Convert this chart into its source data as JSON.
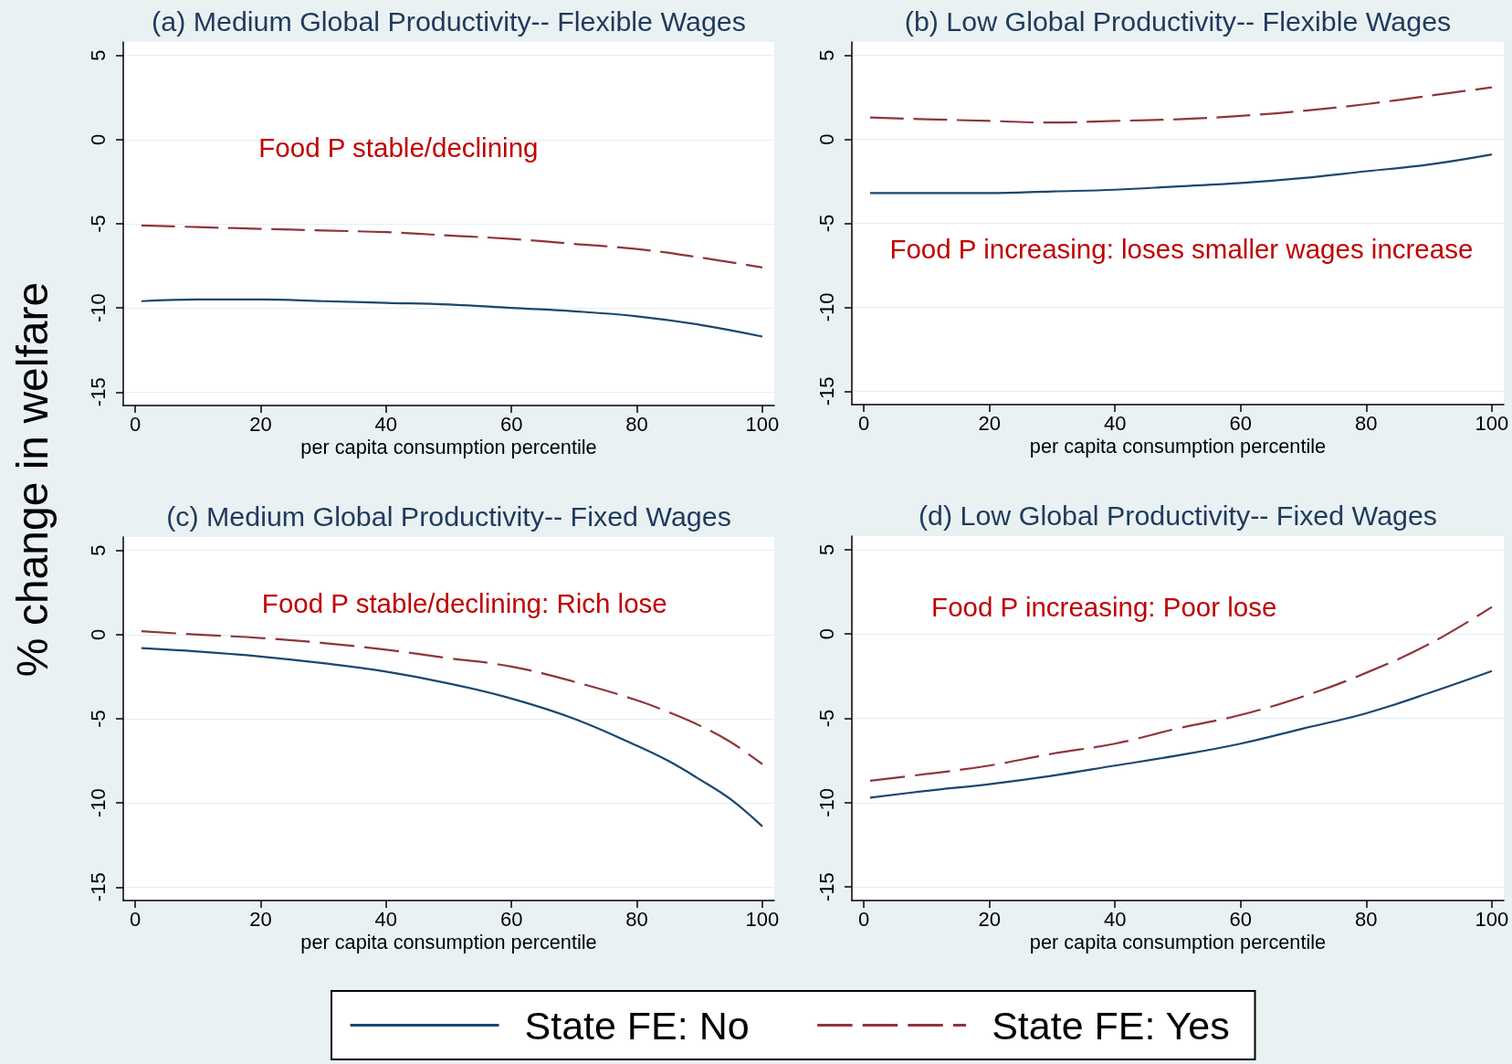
{
  "chart_data": [
    {
      "type": "line",
      "title": "(a) Medium Global Productivity-- Flexible Wages",
      "xlabel": "per capita consumption percentile",
      "ylabel": "% change in welfare",
      "annotations": [
        "Food P stable/declining"
      ],
      "x": [
        1,
        10,
        20,
        30,
        40,
        50,
        60,
        70,
        80,
        90,
        100
      ],
      "series": [
        {
          "color": "#1a476f",
          "line_style": "solid",
          "values": [
            -9.6,
            -9.5,
            -9.5,
            -9.6,
            -9.7,
            -9.8,
            -10.0,
            -10.2,
            -10.5,
            -11.0,
            -11.7
          ]
        },
        {
          "color": "#90353b",
          "line_style": "dashed",
          "values": [
            -5.1,
            -5.2,
            -5.3,
            -5.4,
            -5.5,
            -5.7,
            -5.9,
            -6.2,
            -6.5,
            -7.0,
            -7.6
          ]
        }
      ],
      "xlim": [
        -1.9,
        101.9
      ],
      "xticks": [
        0,
        20,
        40,
        60,
        80,
        100
      ],
      "ylim": [
        -15.8,
        5.8
      ],
      "yticks": [
        -15,
        -10,
        -5,
        0,
        5
      ],
      "grid": "y"
    },
    {
      "type": "line",
      "title": "(b) Low Global Productivity-- Flexible Wages",
      "xlabel": "per capita consumption percentile",
      "annotations": [
        "Food P increasing: loses smaller wages increase"
      ],
      "x": [
        1,
        10,
        20,
        30,
        40,
        50,
        60,
        70,
        80,
        90,
        100
      ],
      "series": [
        {
          "color": "#1a476f",
          "line_style": "solid",
          "values": [
            -3.2,
            -3.2,
            -3.2,
            -3.1,
            -3.0,
            -2.8,
            -2.6,
            -2.3,
            -1.9,
            -1.5,
            -0.9
          ]
        },
        {
          "color": "#90353b",
          "line_style": "dashed",
          "values": [
            1.3,
            1.2,
            1.1,
            1.0,
            1.1,
            1.2,
            1.4,
            1.7,
            2.1,
            2.6,
            3.1
          ]
        }
      ],
      "xlim": [
        -1.9,
        101.9
      ],
      "xticks": [
        0,
        20,
        40,
        60,
        80,
        100
      ],
      "ylim": [
        -15.8,
        5.8
      ],
      "yticks": [
        -15,
        -10,
        -5,
        0,
        5
      ],
      "grid": "y"
    },
    {
      "type": "line",
      "title": "(c) Medium Global Productivity-- Fixed Wages",
      "xlabel": "per capita consumption percentile",
      "annotations": [
        "Food P stable/declining: Rich lose"
      ],
      "x": [
        1,
        10,
        20,
        30,
        40,
        50,
        60,
        70,
        80,
        85,
        90,
        95,
        100
      ],
      "series": [
        {
          "color": "#1a476f",
          "line_style": "solid",
          "values": [
            -0.8,
            -1.0,
            -1.3,
            -1.7,
            -2.2,
            -2.9,
            -3.8,
            -5.0,
            -6.6,
            -7.5,
            -8.6,
            -9.8,
            -11.4
          ]
        },
        {
          "color": "#90353b",
          "line_style": "dashed",
          "values": [
            0.2,
            0.0,
            -0.2,
            -0.5,
            -0.9,
            -1.4,
            -1.9,
            -2.8,
            -3.9,
            -4.6,
            -5.4,
            -6.4,
            -7.7
          ]
        }
      ],
      "xlim": [
        -1.9,
        101.9
      ],
      "xticks": [
        0,
        20,
        40,
        60,
        80,
        100
      ],
      "ylim": [
        -15.8,
        5.8
      ],
      "yticks": [
        -15,
        -10,
        -5,
        0,
        5
      ],
      "grid": "y"
    },
    {
      "type": "line",
      "title": "(d) Low Global Productivity-- Fixed Wages",
      "xlabel": "per capita consumption percentile",
      "annotations": [
        "Food P increasing: Poor lose"
      ],
      "x": [
        1,
        10,
        20,
        30,
        40,
        50,
        60,
        70,
        80,
        90,
        100
      ],
      "series": [
        {
          "name": "State FE: No",
          "color": "#1a476f",
          "line_style": "solid",
          "values": [
            -9.7,
            -9.3,
            -8.9,
            -8.4,
            -7.8,
            -7.2,
            -6.5,
            -5.6,
            -4.7,
            -3.5,
            -2.2
          ]
        },
        {
          "name": "State FE: Yes",
          "color": "#90353b",
          "line_style": "dashed",
          "values": [
            -8.7,
            -8.3,
            -7.8,
            -7.1,
            -6.5,
            -5.6,
            -4.8,
            -3.7,
            -2.3,
            -0.6,
            1.6
          ]
        }
      ],
      "xlim": [
        -1.9,
        101.9
      ],
      "xticks": [
        0,
        20,
        40,
        60,
        80,
        100
      ],
      "ylim": [
        -15.8,
        5.8
      ],
      "yticks": [
        -15,
        -10,
        -5,
        0,
        5
      ],
      "grid": "y",
      "legend": "bottom"
    }
  ]
}
